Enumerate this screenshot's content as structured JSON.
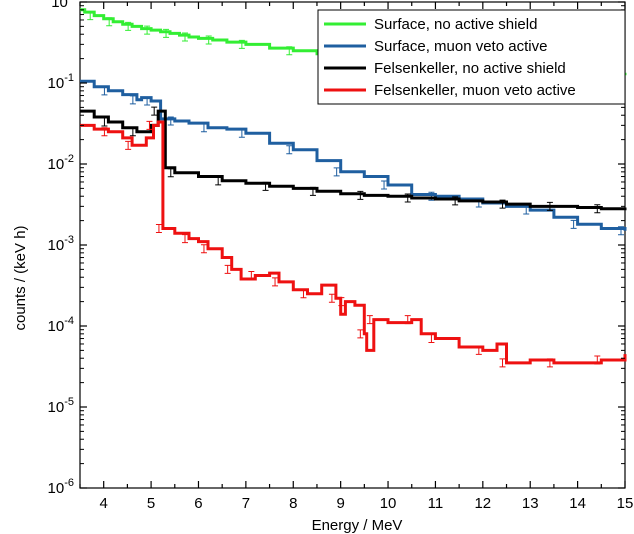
{
  "chart_data": {
    "type": "line",
    "xlabel": "Energy / MeV",
    "ylabel": "counts / (keV h)",
    "xlim": [
      3.5,
      15
    ],
    "ylim": [
      1e-06,
      1
    ],
    "yscale": "log",
    "grid": false,
    "legend_position": "top-right",
    "x_ticks": [
      "4",
      "5",
      "6",
      "7",
      "8",
      "9",
      "10",
      "11",
      "12",
      "13",
      "14",
      "15"
    ],
    "y_ticks": [
      {
        "base": "10",
        "exp": "-6"
      },
      {
        "base": "10",
        "exp": "-5"
      },
      {
        "base": "10",
        "exp": "-4"
      },
      {
        "base": "10",
        "exp": "-3"
      },
      {
        "base": "10",
        "exp": "-2"
      },
      {
        "base": "10",
        "exp": "-1"
      },
      {
        "base": "10",
        "exp": "0"
      }
    ],
    "series": [
      {
        "name": "Surface, no active shield",
        "color": "#33ee33",
        "points": [
          [
            3.5,
            0.8
          ],
          [
            3.6,
            0.75
          ],
          [
            3.8,
            0.68
          ],
          [
            4.0,
            0.62
          ],
          [
            4.2,
            0.57
          ],
          [
            4.4,
            0.53
          ],
          [
            4.6,
            0.5
          ],
          [
            4.8,
            0.47
          ],
          [
            5.0,
            0.45
          ],
          [
            5.2,
            0.43
          ],
          [
            5.4,
            0.41
          ],
          [
            5.6,
            0.39
          ],
          [
            5.8,
            0.37
          ],
          [
            6.0,
            0.355
          ],
          [
            6.3,
            0.34
          ],
          [
            6.6,
            0.32
          ],
          [
            7.0,
            0.3
          ],
          [
            7.5,
            0.27
          ],
          [
            8.0,
            0.25
          ],
          [
            8.5,
            0.23
          ],
          [
            9.0,
            0.215
          ],
          [
            9.5,
            0.2
          ],
          [
            10.0,
            0.19
          ],
          [
            10.5,
            0.18
          ],
          [
            11.0,
            0.165
          ],
          [
            11.5,
            0.155
          ],
          [
            12.0,
            0.15
          ],
          [
            12.5,
            0.145
          ],
          [
            13.0,
            0.14
          ],
          [
            13.5,
            0.135
          ],
          [
            14.0,
            0.13
          ],
          [
            14.5,
            0.128
          ],
          [
            15.0,
            0.125
          ]
        ]
      },
      {
        "name": "Surface, muon veto active",
        "color": "#1f5fa0",
        "points": [
          [
            3.5,
            0.105
          ],
          [
            3.8,
            0.09
          ],
          [
            4.1,
            0.08
          ],
          [
            4.4,
            0.072
          ],
          [
            4.7,
            0.062
          ],
          [
            4.8,
            0.066
          ],
          [
            5.0,
            0.06
          ],
          [
            5.2,
            0.036
          ],
          [
            5.5,
            0.034
          ],
          [
            5.8,
            0.032
          ],
          [
            6.2,
            0.028
          ],
          [
            6.6,
            0.027
          ],
          [
            7.0,
            0.024
          ],
          [
            7.5,
            0.018
          ],
          [
            8.0,
            0.015
          ],
          [
            8.5,
            0.011
          ],
          [
            9.0,
            0.008
          ],
          [
            9.5,
            0.007
          ],
          [
            10.0,
            0.0055
          ],
          [
            10.5,
            0.0042
          ],
          [
            11.0,
            0.004
          ],
          [
            11.5,
            0.0037
          ],
          [
            12.0,
            0.0033
          ],
          [
            12.5,
            0.003
          ],
          [
            13.0,
            0.0027
          ],
          [
            13.5,
            0.0022
          ],
          [
            14.0,
            0.0018
          ],
          [
            14.5,
            0.0016
          ],
          [
            15.0,
            0.0015
          ]
        ]
      },
      {
        "name": "Felsenkeller, no active shield",
        "color": "#000000",
        "points": [
          [
            3.5,
            0.045
          ],
          [
            3.8,
            0.038
          ],
          [
            4.1,
            0.033
          ],
          [
            4.4,
            0.028
          ],
          [
            4.7,
            0.025
          ],
          [
            5.0,
            0.03
          ],
          [
            5.15,
            0.045
          ],
          [
            5.3,
            0.009
          ],
          [
            5.5,
            0.0078
          ],
          [
            6.0,
            0.007
          ],
          [
            6.5,
            0.0062
          ],
          [
            7.0,
            0.0058
          ],
          [
            7.5,
            0.0053
          ],
          [
            8.0,
            0.005
          ],
          [
            8.5,
            0.0046
          ],
          [
            9.0,
            0.0043
          ],
          [
            9.5,
            0.0041
          ],
          [
            10.0,
            0.004
          ],
          [
            10.5,
            0.0038
          ],
          [
            11.0,
            0.0037
          ],
          [
            11.5,
            0.0035
          ],
          [
            12.0,
            0.0034
          ],
          [
            12.5,
            0.0032
          ],
          [
            13.0,
            0.003
          ],
          [
            13.5,
            0.003
          ],
          [
            14.0,
            0.0029
          ],
          [
            14.5,
            0.0028
          ],
          [
            15.0,
            0.0029
          ]
        ]
      },
      {
        "name": "Felsenkeller, muon veto active",
        "color": "#ee1111",
        "points": [
          [
            3.5,
            0.03
          ],
          [
            3.8,
            0.027
          ],
          [
            4.1,
            0.025
          ],
          [
            4.4,
            0.021
          ],
          [
            4.6,
            0.017
          ],
          [
            4.9,
            0.021
          ],
          [
            5.05,
            0.03
          ],
          [
            5.15,
            0.033
          ],
          [
            5.25,
            0.0016
          ],
          [
            5.5,
            0.0014
          ],
          [
            5.8,
            0.0012
          ],
          [
            6.0,
            0.0011
          ],
          [
            6.2,
            0.0009
          ],
          [
            6.5,
            0.0007
          ],
          [
            6.7,
            0.0005
          ],
          [
            6.9,
            0.00038
          ],
          [
            7.2,
            0.00042
          ],
          [
            7.5,
            0.00045
          ],
          [
            7.7,
            0.00035
          ],
          [
            8.0,
            0.00028
          ],
          [
            8.3,
            0.00025
          ],
          [
            8.6,
            0.00032
          ],
          [
            8.9,
            0.00022
          ],
          [
            9.0,
            0.00014
          ],
          [
            9.1,
            0.0002
          ],
          [
            9.3,
            0.00018
          ],
          [
            9.5,
            8e-05
          ],
          [
            9.55,
            5e-05
          ],
          [
            9.7,
            0.00012
          ],
          [
            10.0,
            0.00011
          ],
          [
            10.5,
            0.00012
          ],
          [
            10.7,
            8e-05
          ],
          [
            11.0,
            7e-05
          ],
          [
            11.5,
            5.5e-05
          ],
          [
            12.0,
            5e-05
          ],
          [
            12.3,
            6e-05
          ],
          [
            12.5,
            3.5e-05
          ],
          [
            13.0,
            3.8e-05
          ],
          [
            13.5,
            3.5e-05
          ],
          [
            14.0,
            3.5e-05
          ],
          [
            14.5,
            3.8e-05
          ],
          [
            15.0,
            4.5e-05
          ]
        ]
      }
    ]
  }
}
